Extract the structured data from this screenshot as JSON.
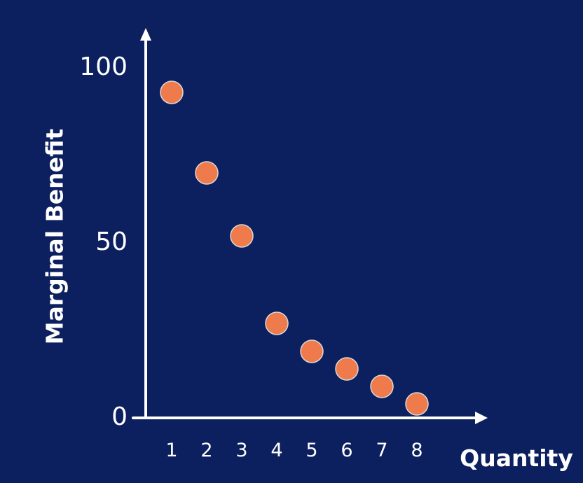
{
  "chart_data": {
    "type": "scatter",
    "title": "",
    "xlabel": "Quantity",
    "ylabel": "Marginal Benefit",
    "x": [
      1,
      2,
      3,
      4,
      5,
      6,
      7,
      8
    ],
    "y": [
      93,
      70,
      52,
      27,
      19,
      14,
      9,
      4
    ],
    "x_ticks": [
      "1",
      "2",
      "3",
      "4",
      "5",
      "6",
      "7",
      "8"
    ],
    "y_ticks": [
      "0",
      "50",
      "100"
    ],
    "ylim": [
      0,
      100
    ],
    "grid": false,
    "colors": {
      "background": "#0c1f5f",
      "axis": "#ffffff",
      "point": "#ef7a4c"
    }
  }
}
